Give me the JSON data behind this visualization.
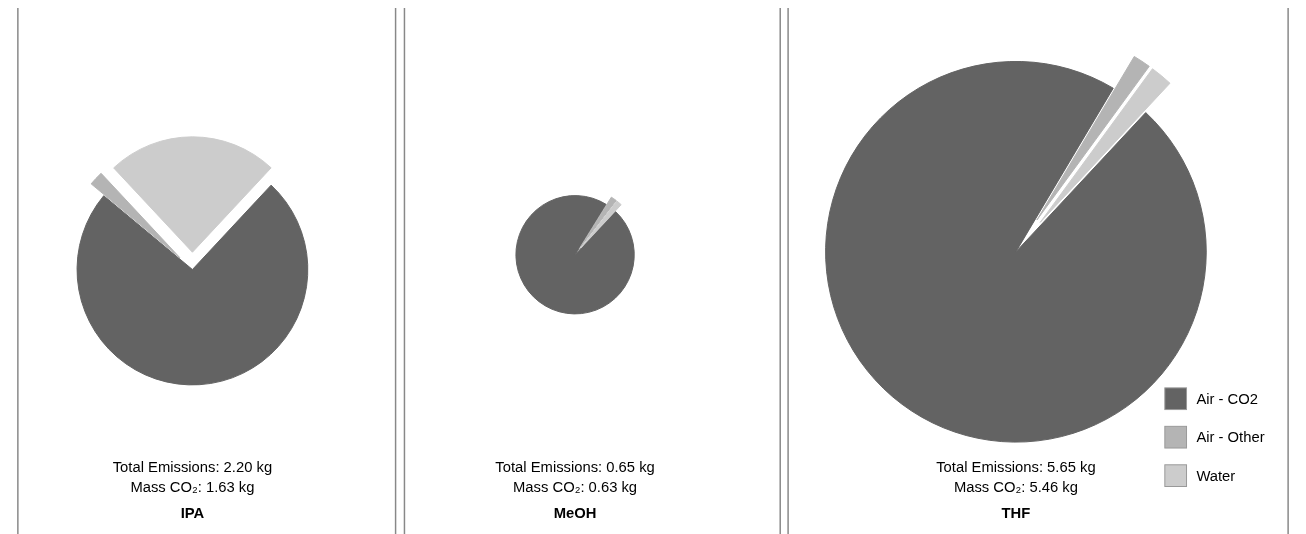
{
  "chart_data": [
    {
      "type": "pie",
      "title": "IPA",
      "categories": [
        null,
        null,
        null
      ],
      "values": [
        74.1,
        2,
        23.9
      ],
      "colors": [
        "#636363",
        "#b4b4b4",
        "#cccccc"
      ],
      "annotations": [
        "Total Emissions: 2.20 kg",
        "Mass CO₂: 1.63 kg"
      ],
      "legend": false
    },
    {
      "type": "pie",
      "title": "MeOH",
      "categories": [
        null,
        null,
        null
      ],
      "values": [
        96.9,
        1.6,
        1.5
      ],
      "colors": [
        "#636363",
        "#b4b4b4",
        "#cccccc"
      ],
      "annotations": [
        "Total Emissions: 0.65 kg",
        "Mass CO₂: 0.63 kg"
      ],
      "legend": false
    },
    {
      "type": "pie",
      "title": "THF",
      "categories": [
        "Air - CO2",
        "Air - Other",
        "Water"
      ],
      "values": [
        96.6,
        1.5,
        1.9
      ],
      "colors": [
        "#636363",
        "#b4b4b4",
        "#cccccc"
      ],
      "annotations": [
        "Total Emissions: 5.65 kg",
        "Mass CO₂: 5.46 kg"
      ],
      "legend": "right"
    }
  ]
}
